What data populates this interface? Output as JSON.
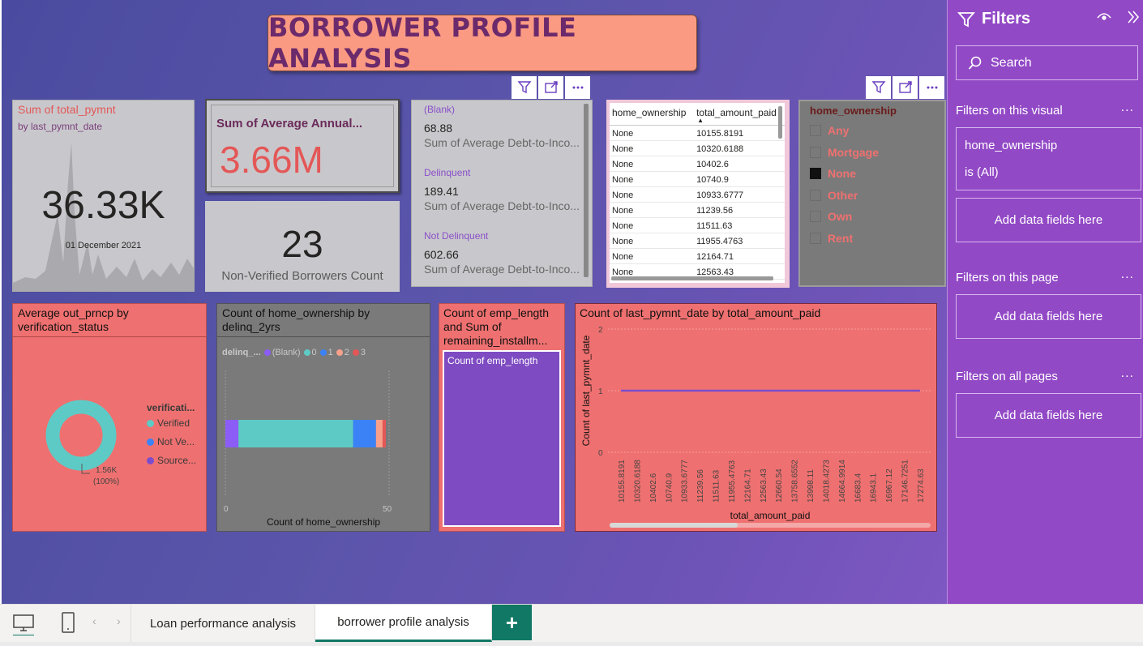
{
  "report": {
    "title": "BORROWER PROFILE ANALYSIS"
  },
  "kpi_total_payment": {
    "title": "Sum of total_pymnt",
    "subtitle": "by last_pymnt_date",
    "value": "36.33K",
    "date": "01 December 2021"
  },
  "kpi_avg_annual": {
    "title": "Sum of Average Annual...",
    "value": "3.66M"
  },
  "kpi_non_verified": {
    "value": "23",
    "label": "Non-Verified Borrowers Count"
  },
  "multi_row_card": {
    "rows": [
      {
        "category": "(Blank)",
        "value": "68.88",
        "label": "Sum of Average Debt-to-Inco..."
      },
      {
        "category": "Delinquent",
        "value": "189.41",
        "label": "Sum of Average Debt-to-Inco..."
      },
      {
        "category": "Not Delinquent",
        "value": "602.66",
        "label": "Sum of Average Debt-to-Inco..."
      }
    ]
  },
  "table": {
    "columns": [
      "home_ownership",
      "total_amount_paid"
    ],
    "rows": [
      [
        "None",
        "10155.8191"
      ],
      [
        "None",
        "10320.6188"
      ],
      [
        "None",
        "10402.6"
      ],
      [
        "None",
        "10740.9"
      ],
      [
        "None",
        "10933.6777"
      ],
      [
        "None",
        "11239.56"
      ],
      [
        "None",
        "11511.63"
      ],
      [
        "None",
        "11955.4763"
      ],
      [
        "None",
        "12164.71"
      ],
      [
        "None",
        "12563.43"
      ]
    ]
  },
  "slicer": {
    "header": "home_ownership",
    "options": [
      {
        "label": "Any",
        "checked": false
      },
      {
        "label": "Mortgage",
        "checked": false
      },
      {
        "label": "None",
        "checked": true
      },
      {
        "label": "Other",
        "checked": false
      },
      {
        "label": "Own",
        "checked": false
      },
      {
        "label": "Rent",
        "checked": false
      }
    ]
  },
  "donut_chart": {
    "title": "Average out_prncp by verification_status",
    "legend_title": "verificati...",
    "legend": [
      {
        "label": "Verified",
        "color": "#5ecac6"
      },
      {
        "label": "Not Ve...",
        "color": "#3b82f6"
      },
      {
        "label": "Source...",
        "color": "#7c4dcc"
      }
    ],
    "data_label_value": "1.56K",
    "data_label_pct": "(100%)"
  },
  "stacked_bar": {
    "title": "Count of home_ownership by delinq_2yrs",
    "legend_title": "delinq_...",
    "legend": [
      {
        "label": "(Blank)",
        "color": "#8b5cf6"
      },
      {
        "label": "0",
        "color": "#5ecac6"
      },
      {
        "label": "1",
        "color": "#3b82f6"
      },
      {
        "label": "2",
        "color": "#f8a08a"
      },
      {
        "label": "3",
        "color": "#e45757"
      }
    ],
    "x_axis_label": "Count of home_ownership",
    "x_ticks": [
      "0",
      "50"
    ]
  },
  "emp_card": {
    "title": "Count of emp_length\nand Sum of\nremaining_installm...",
    "inner_label": "Count of emp_length"
  },
  "line_chart": {
    "title": "Count of last_pymnt_date by total_amount_paid",
    "x_label": "total_amount_paid",
    "y_label": "Count of last_pymnt_date",
    "y_ticks": [
      "2",
      "1",
      "0"
    ]
  },
  "filters": {
    "title": "Filters",
    "search_placeholder": "Search",
    "on_visual": "Filters on this visual",
    "visual_filter_field": "home_ownership",
    "visual_filter_value": "is (All)",
    "add_fields": "Add data fields here",
    "on_page": "Filters on this page",
    "on_all": "Filters on all pages",
    "more": "..."
  },
  "tabs": {
    "tab1": "Loan performance analysis",
    "tab2": "borrower profile analysis",
    "add": "+"
  },
  "chart_data": [
    {
      "type": "pie",
      "title": "Average out_prncp by verification_status",
      "categories": [
        "Verified",
        "Not Ve...",
        "Source..."
      ],
      "values": [
        1560,
        0,
        0
      ],
      "labels": [
        "1.56K (100%)"
      ]
    },
    {
      "type": "bar",
      "orientation": "horizontal-stacked",
      "title": "Count of home_ownership by delinq_2yrs",
      "xlabel": "Count of home_ownership",
      "xlim": [
        0,
        50
      ],
      "series": [
        {
          "name": "(Blank)",
          "values": [
            4
          ]
        },
        {
          "name": "0",
          "values": [
            35
          ]
        },
        {
          "name": "1",
          "values": [
            7
          ]
        },
        {
          "name": "2",
          "values": [
            2
          ]
        },
        {
          "name": "3",
          "values": [
            1
          ]
        }
      ]
    },
    {
      "type": "line",
      "title": "Count of last_pymnt_date by total_amount_paid",
      "xlabel": "total_amount_paid",
      "ylabel": "Count of last_pymnt_date",
      "ylim": [
        0,
        2
      ],
      "x": [
        "10155.8191",
        "10320.6188",
        "10402.6",
        "10740.9",
        "10933.6777",
        "11239.56",
        "11511.63",
        "11955.4763",
        "12164.71",
        "12563.43",
        "12660.54",
        "13758.6552",
        "13998.11",
        "14018.4273",
        "14664.9914",
        "16683.4",
        "16943.1",
        "16967.12",
        "17146.7251",
        "17274.63"
      ],
      "series": [
        {
          "values": [
            1,
            1,
            1,
            1,
            1,
            1,
            1,
            1,
            1,
            1,
            1,
            1,
            1,
            1,
            1,
            1,
            1,
            1,
            1,
            1
          ]
        }
      ]
    }
  ]
}
